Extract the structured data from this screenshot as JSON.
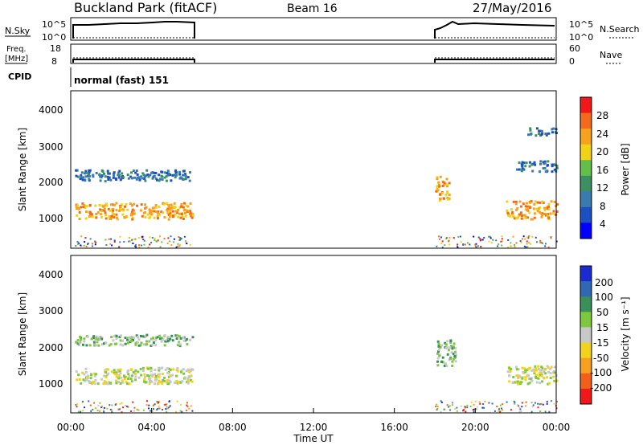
{
  "header": {
    "station": "Buckland Park (fitACF)",
    "beam": "Beam 16",
    "date": "27/May/2016"
  },
  "noise_panel": {
    "left_label": "N.Sky",
    "right_label": "N.Search",
    "left_ticks": [
      "10^5",
      "10^0"
    ],
    "right_ticks": [
      "10^5",
      "10^0"
    ]
  },
  "freq_panel": {
    "left_label_1": "Freq.",
    "left_label_2": "[MHz]",
    "right_label": "Nave",
    "left_ticks": [
      "18",
      "8"
    ],
    "right_ticks": [
      "60",
      "0"
    ]
  },
  "cpid": {
    "label": "CPID",
    "text": "normal (fast) 151"
  },
  "power_panel": {
    "ylabel": "Slant Range [km]",
    "yticks": [
      "4000",
      "3000",
      "2000",
      "1000"
    ],
    "colorbar_label": "Power [dB]",
    "colorbar_ticks": [
      "28",
      "24",
      "20",
      "16",
      "12",
      "8",
      "4"
    ],
    "colors": [
      "#0000ff",
      "#1c4fbf",
      "#3a7ab0",
      "#3c8f63",
      "#63bf47",
      "#f2d215",
      "#f7a11c",
      "#f46a1c",
      "#f01818"
    ]
  },
  "velocity_panel": {
    "ylabel": "Slant Range [km]",
    "yticks": [
      "4000",
      "3000",
      "2000",
      "1000"
    ],
    "colorbar_label": "Velocity [m s⁻¹]",
    "colorbar_ticks": [
      "200",
      "100",
      "50",
      "15",
      "-15",
      "-50",
      "-100",
      "-200"
    ],
    "colors": [
      "#1a2bd0",
      "#2f68b5",
      "#3b8f58",
      "#7ec840",
      "#c8c8c8",
      "#f2d21a",
      "#f7a020",
      "#f26018",
      "#f01818"
    ]
  },
  "x_axis": {
    "label": "Time UT",
    "ticks": [
      "00:00",
      "04:00",
      "08:00",
      "12:00",
      "16:00",
      "20:00",
      "00:00"
    ]
  },
  "chart_data": {
    "type": "heatmap",
    "title": "Buckland Park (fitACF)",
    "subtitle": "Beam 16",
    "xlabel": "Time UT",
    "ylabel": "Slant Range [km]",
    "xlim_hours": [
      0,
      24
    ],
    "ylim_km": [
      180,
      4500
    ],
    "data_gap_hours": [
      6,
      18
    ],
    "power_features": [
      {
        "t0": 0.2,
        "t1": 6.0,
        "r0": 1000,
        "r1": 1450,
        "value_db": 24
      },
      {
        "t0": 0.2,
        "t1": 6.0,
        "r0": 2050,
        "r1": 2350,
        "value_db": 8
      },
      {
        "t0": 18.0,
        "t1": 18.7,
        "r0": 1500,
        "r1": 2200,
        "value_db": 22
      },
      {
        "t0": 21.5,
        "t1": 24.0,
        "r0": 1000,
        "r1": 1500,
        "value_db": 22
      },
      {
        "t0": 22.0,
        "t1": 24.0,
        "r0": 2300,
        "r1": 2600,
        "value_db": 8
      },
      {
        "t0": 22.5,
        "t1": 24.0,
        "r0": 3300,
        "r1": 3500,
        "value_db": 6
      }
    ],
    "velocity_features": [
      {
        "t0": 0.2,
        "t1": 6.0,
        "r0": 1000,
        "r1": 1450,
        "value_ms": 0
      },
      {
        "t0": 0.2,
        "t1": 6.0,
        "r0": 2050,
        "r1": 2350,
        "value_ms": 20
      },
      {
        "t0": 18.0,
        "t1": 19.0,
        "r0": 1500,
        "r1": 2200,
        "value_ms": 30
      },
      {
        "t0": 21.5,
        "t1": 24.0,
        "r0": 1000,
        "r1": 1500,
        "value_ms": 0
      }
    ]
  }
}
